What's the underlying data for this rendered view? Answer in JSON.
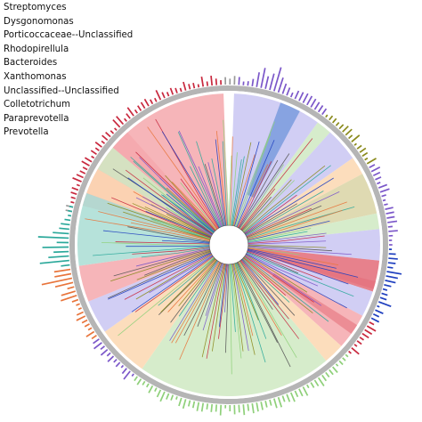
{
  "legend": {
    "items": [
      "Streptomyces",
      "Dysgonomonas",
      "Porticoccaceae--Unclassified",
      "Rhodopirellula",
      "Bacteroides",
      "Xanthomonas",
      "Unclassified--Unclassified",
      "Colletotrichum",
      "Paraprevotella",
      "Prevotella"
    ]
  },
  "clades": [
    {
      "color": "#f4a8ad"
    },
    {
      "color": "#c9c6f2"
    },
    {
      "color": "#a9ddd4"
    },
    {
      "color": "#cfe9c2"
    },
    {
      "color": "#d9d3a4"
    },
    {
      "color": "#fbd7b0"
    },
    {
      "color": "#4a7fd1"
    },
    {
      "color": "#e36b78"
    }
  ],
  "ring": {
    "color": "#b5b5b5"
  }
}
